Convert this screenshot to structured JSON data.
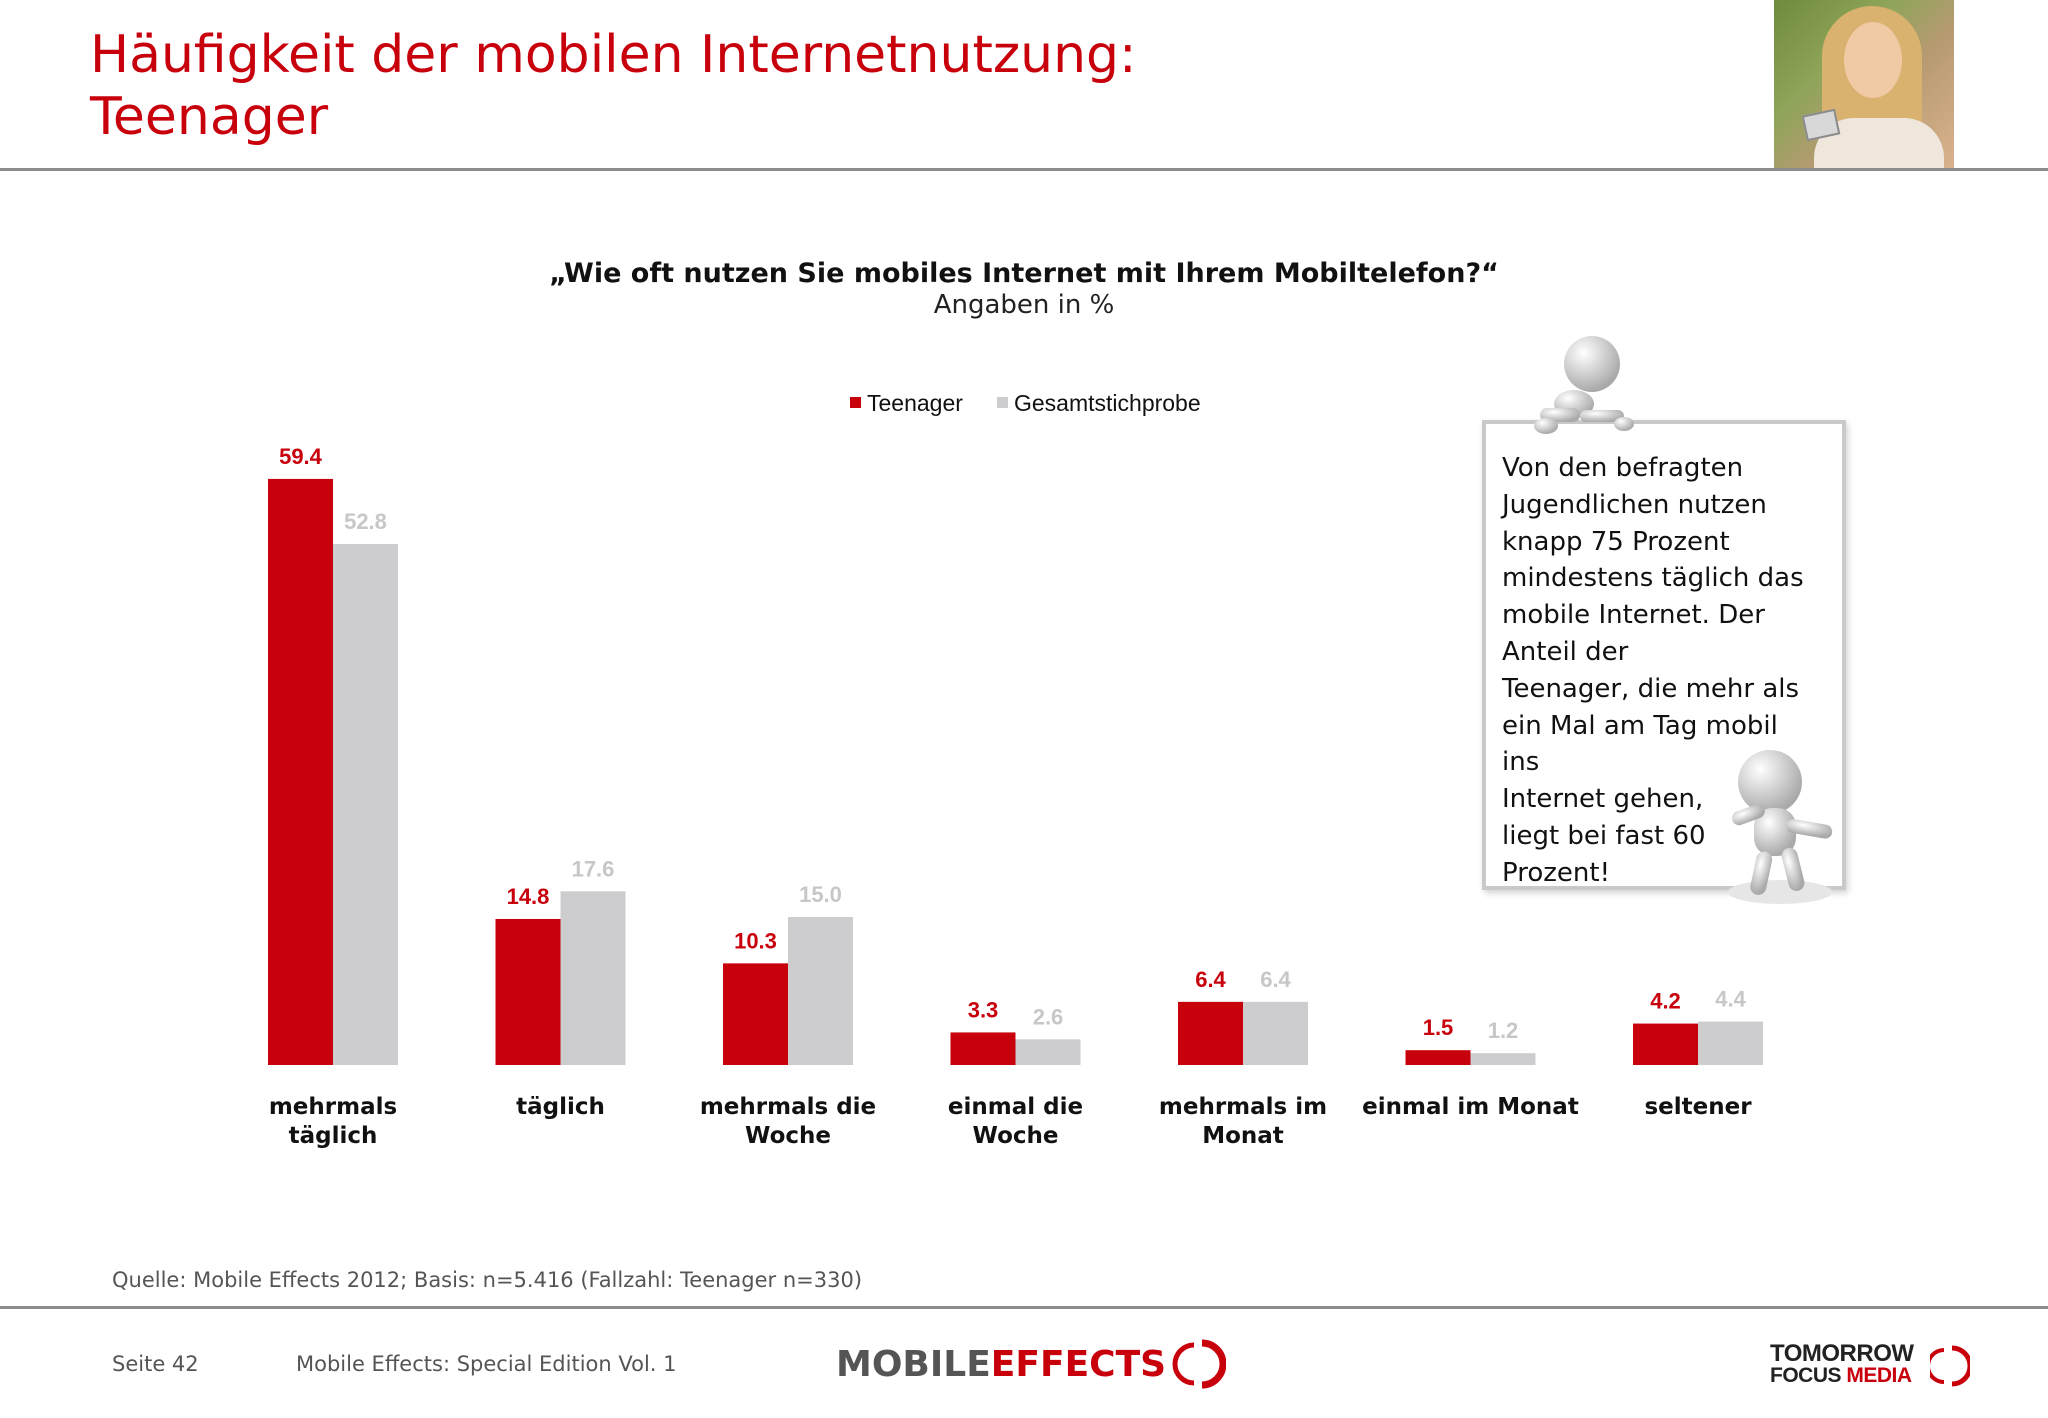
{
  "slide": {
    "title_line1": "Häufigkeit der mobilen Internetnutzung:",
    "title_line2": "Teenager",
    "callout_text": "Von den befragten\nJugendlichen nutzen\nknapp 75 Prozent\nmindestens täglich das\nmobile Internet. Der\nAnteil der\nTeenager, die mehr als\nein Mal am Tag mobil\nins\nInternet gehen,\nliegt bei fast 60\nProzent!",
    "source": "Quelle: Mobile Effects 2012; Basis: n=5.416 (Fallzahl: Teenager n=330)"
  },
  "footer": {
    "page": "Seite 42",
    "publication": "Mobile Effects: Special Edition Vol. 1",
    "logo_mobile": "MOBILE",
    "logo_effects": "EFFECTS",
    "logo_tomorrow": "TOMORROW",
    "logo_focus": "FOCUS",
    "logo_media": "MEDIA"
  },
  "colors": {
    "accent_red": "#c8000c",
    "series_grey": "#cdcdcf",
    "rule_grey": "#8c8c8c"
  },
  "chart_data": {
    "type": "bar",
    "title": "„Wie oft nutzen Sie mobiles Internet mit Ihrem Mobiltelefon?“",
    "subtitle": "Angaben in %",
    "categories": [
      [
        "mehrmals",
        "täglich"
      ],
      [
        "täglich"
      ],
      [
        "mehrmals die",
        "Woche"
      ],
      [
        "einmal die",
        "Woche"
      ],
      [
        "mehrmals im",
        "Monat"
      ],
      [
        "einmal im Monat"
      ],
      [
        "seltener"
      ]
    ],
    "series": [
      {
        "name": "Teenager",
        "color": "#c8000c",
        "values": [
          59.4,
          14.8,
          10.3,
          3.3,
          6.4,
          1.5,
          4.2
        ]
      },
      {
        "name": "Gesamtstichprobe",
        "color": "#cdcdcf",
        "values": [
          52.8,
          17.6,
          15.0,
          2.6,
          6.4,
          1.2,
          4.4
        ]
      }
    ],
    "ylim": [
      0,
      60
    ],
    "grid": false,
    "legend": "top-center",
    "data_labels": true
  }
}
